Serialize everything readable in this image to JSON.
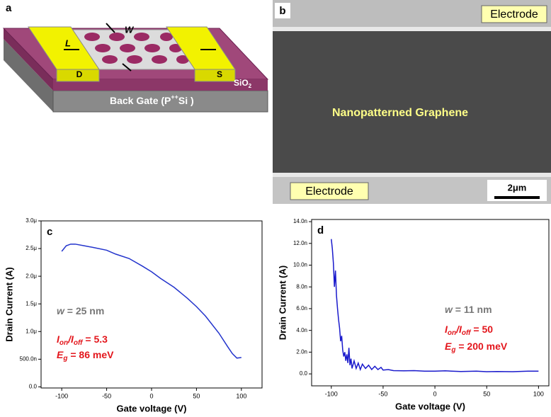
{
  "panel_a": {
    "label": "a",
    "w": "W",
    "l": "L",
    "d": "D",
    "s": "S",
    "sio": "SiO",
    "sio_sub": "2",
    "gate": "Back Gate (P",
    "gate_sup": "++",
    "gate_end": "Si )"
  },
  "panel_b": {
    "label": "b",
    "electrode_top": "Electrode",
    "center": "Nanopatterned Graphene",
    "electrode_bottom": "Electrode",
    "scale": "2μm"
  },
  "chart_data": [
    {
      "type": "line",
      "panel": "c",
      "xlabel": "Gate voltage (V)",
      "ylabel": "Drain Current (A)",
      "xlim": [
        -123,
        123
      ],
      "xticks": [
        -100,
        -50,
        0,
        50,
        100
      ],
      "ylim": [
        -2e-08,
        3e-06
      ],
      "yticks": [
        {
          "value": 0,
          "label": "0.0"
        },
        {
          "value": 5e-07,
          "label": "500.0n"
        },
        {
          "value": 1e-06,
          "label": "1.0μ"
        },
        {
          "value": 1.5e-06,
          "label": "1.5μ"
        },
        {
          "value": 2e-06,
          "label": "2.0μ"
        },
        {
          "value": 2.5e-06,
          "label": "2.5μ"
        },
        {
          "value": 3e-06,
          "label": "3.0μ"
        }
      ],
      "x": [
        -100,
        -95,
        -90,
        -85,
        -75,
        -65,
        -50,
        -40,
        -25,
        -10,
        0,
        10,
        25,
        40,
        50,
        60,
        75,
        85,
        90,
        95,
        100
      ],
      "series": [
        {
          "color": "#2233cc",
          "values": [
            2.45e-06,
            2.55e-06,
            2.58e-06,
            2.58e-06,
            2.55e-06,
            2.52e-06,
            2.47e-06,
            2.4e-06,
            2.32e-06,
            2.18e-06,
            2.08e-06,
            1.96e-06,
            1.8e-06,
            1.6e-06,
            1.45e-06,
            1.28e-06,
            9.7e-07,
            7.2e-07,
            6e-07,
            5.2e-07,
            5.3e-07
          ]
        }
      ],
      "annotations": [
        {
          "color": "#777777",
          "parts": [
            {
              "text": "w",
              "style": "italic"
            },
            {
              "text": " = 25 nm",
              "style": "normal"
            }
          ]
        },
        {
          "color": "#e3161c",
          "parts": [
            {
              "text": "I",
              "style": "italic"
            },
            {
              "text": "on",
              "style": "sub"
            },
            {
              "text": "/",
              "style": "italic"
            },
            {
              "text": "I",
              "style": "italic"
            },
            {
              "text": "off",
              "style": "sub"
            },
            {
              "text": " = 5.3",
              "style": "normal"
            }
          ]
        },
        {
          "color": "#e3161c",
          "parts": [
            {
              "text": "E",
              "style": "italic"
            },
            {
              "text": "g",
              "style": "sub"
            },
            {
              "text": " = 86 meV",
              "style": "normal"
            }
          ]
        }
      ]
    },
    {
      "type": "line",
      "panel": "d",
      "xlabel": "Gate voltage (V)",
      "ylabel": "Drain Current (A)",
      "xlim": [
        -119,
        110
      ],
      "xticks": [
        -100,
        -50,
        0,
        50,
        100
      ],
      "ylim": [
        -1.1e-09,
        1.42e-08
      ],
      "yticks": [
        {
          "value": 0,
          "label": "0.0"
        },
        {
          "value": 2e-09,
          "label": "2.0n"
        },
        {
          "value": 4e-09,
          "label": "4.0n"
        },
        {
          "value": 6e-09,
          "label": "6.0n"
        },
        {
          "value": 8e-09,
          "label": "8.0n"
        },
        {
          "value": 1e-08,
          "label": "10.0n"
        },
        {
          "value": 1.2e-08,
          "label": "12.0n"
        },
        {
          "value": 1.4e-08,
          "label": "14.0n"
        }
      ],
      "x": [
        -100,
        -99,
        -98,
        -97,
        -96,
        -95,
        -94,
        -93,
        -92,
        -91,
        -90,
        -89,
        -88,
        -87,
        -86,
        -85,
        -84,
        -83,
        -82,
        -81,
        -80,
        -78,
        -76,
        -74,
        -72,
        -70,
        -67,
        -64,
        -61,
        -58,
        -55,
        -52,
        -50,
        -45,
        -40,
        -30,
        -20,
        -10,
        0,
        10,
        25,
        40,
        50,
        60,
        75,
        90,
        100
      ],
      "series": [
        {
          "color": "#1a1acc",
          "values": [
            1.24e-08,
            1.15e-08,
            1.02e-08,
            8e-09,
            9.5e-09,
            7.2e-09,
            6e-09,
            5e-09,
            4.2e-09,
            3e-09,
            3.5e-09,
            2.2e-09,
            1.6e-09,
            2e-09,
            1.2e-09,
            1.8e-09,
            1e-09,
            2.4e-09,
            8e-10,
            1.4e-09,
            5e-10,
            1.2e-09,
            5e-10,
            1e-09,
            4e-10,
            9e-10,
            5e-10,
            8e-10,
            4e-10,
            7e-10,
            4e-10,
            6e-10,
            3.5e-10,
            4e-10,
            3e-10,
            2.8e-10,
            3e-10,
            2.5e-10,
            2.5e-10,
            2.8e-10,
            2.2e-10,
            2.5e-10,
            2e-10,
            2.2e-10,
            2e-10,
            2.5e-10,
            2.5e-10
          ]
        }
      ],
      "annotations": [
        {
          "color": "#777777",
          "parts": [
            {
              "text": "w",
              "style": "italic"
            },
            {
              "text": " = 11 nm",
              "style": "normal"
            }
          ]
        },
        {
          "color": "#e3161c",
          "parts": [
            {
              "text": "I",
              "style": "italic"
            },
            {
              "text": "on",
              "style": "sub"
            },
            {
              "text": "/",
              "style": "italic"
            },
            {
              "text": "I",
              "style": "italic"
            },
            {
              "text": "off",
              "style": "sub"
            },
            {
              "text": " = 50",
              "style": "normal"
            }
          ]
        },
        {
          "color": "#e3161c",
          "parts": [
            {
              "text": "E",
              "style": "italic"
            },
            {
              "text": "g",
              "style": "sub"
            },
            {
              "text": " = 200 meV",
              "style": "normal"
            }
          ]
        }
      ]
    }
  ]
}
